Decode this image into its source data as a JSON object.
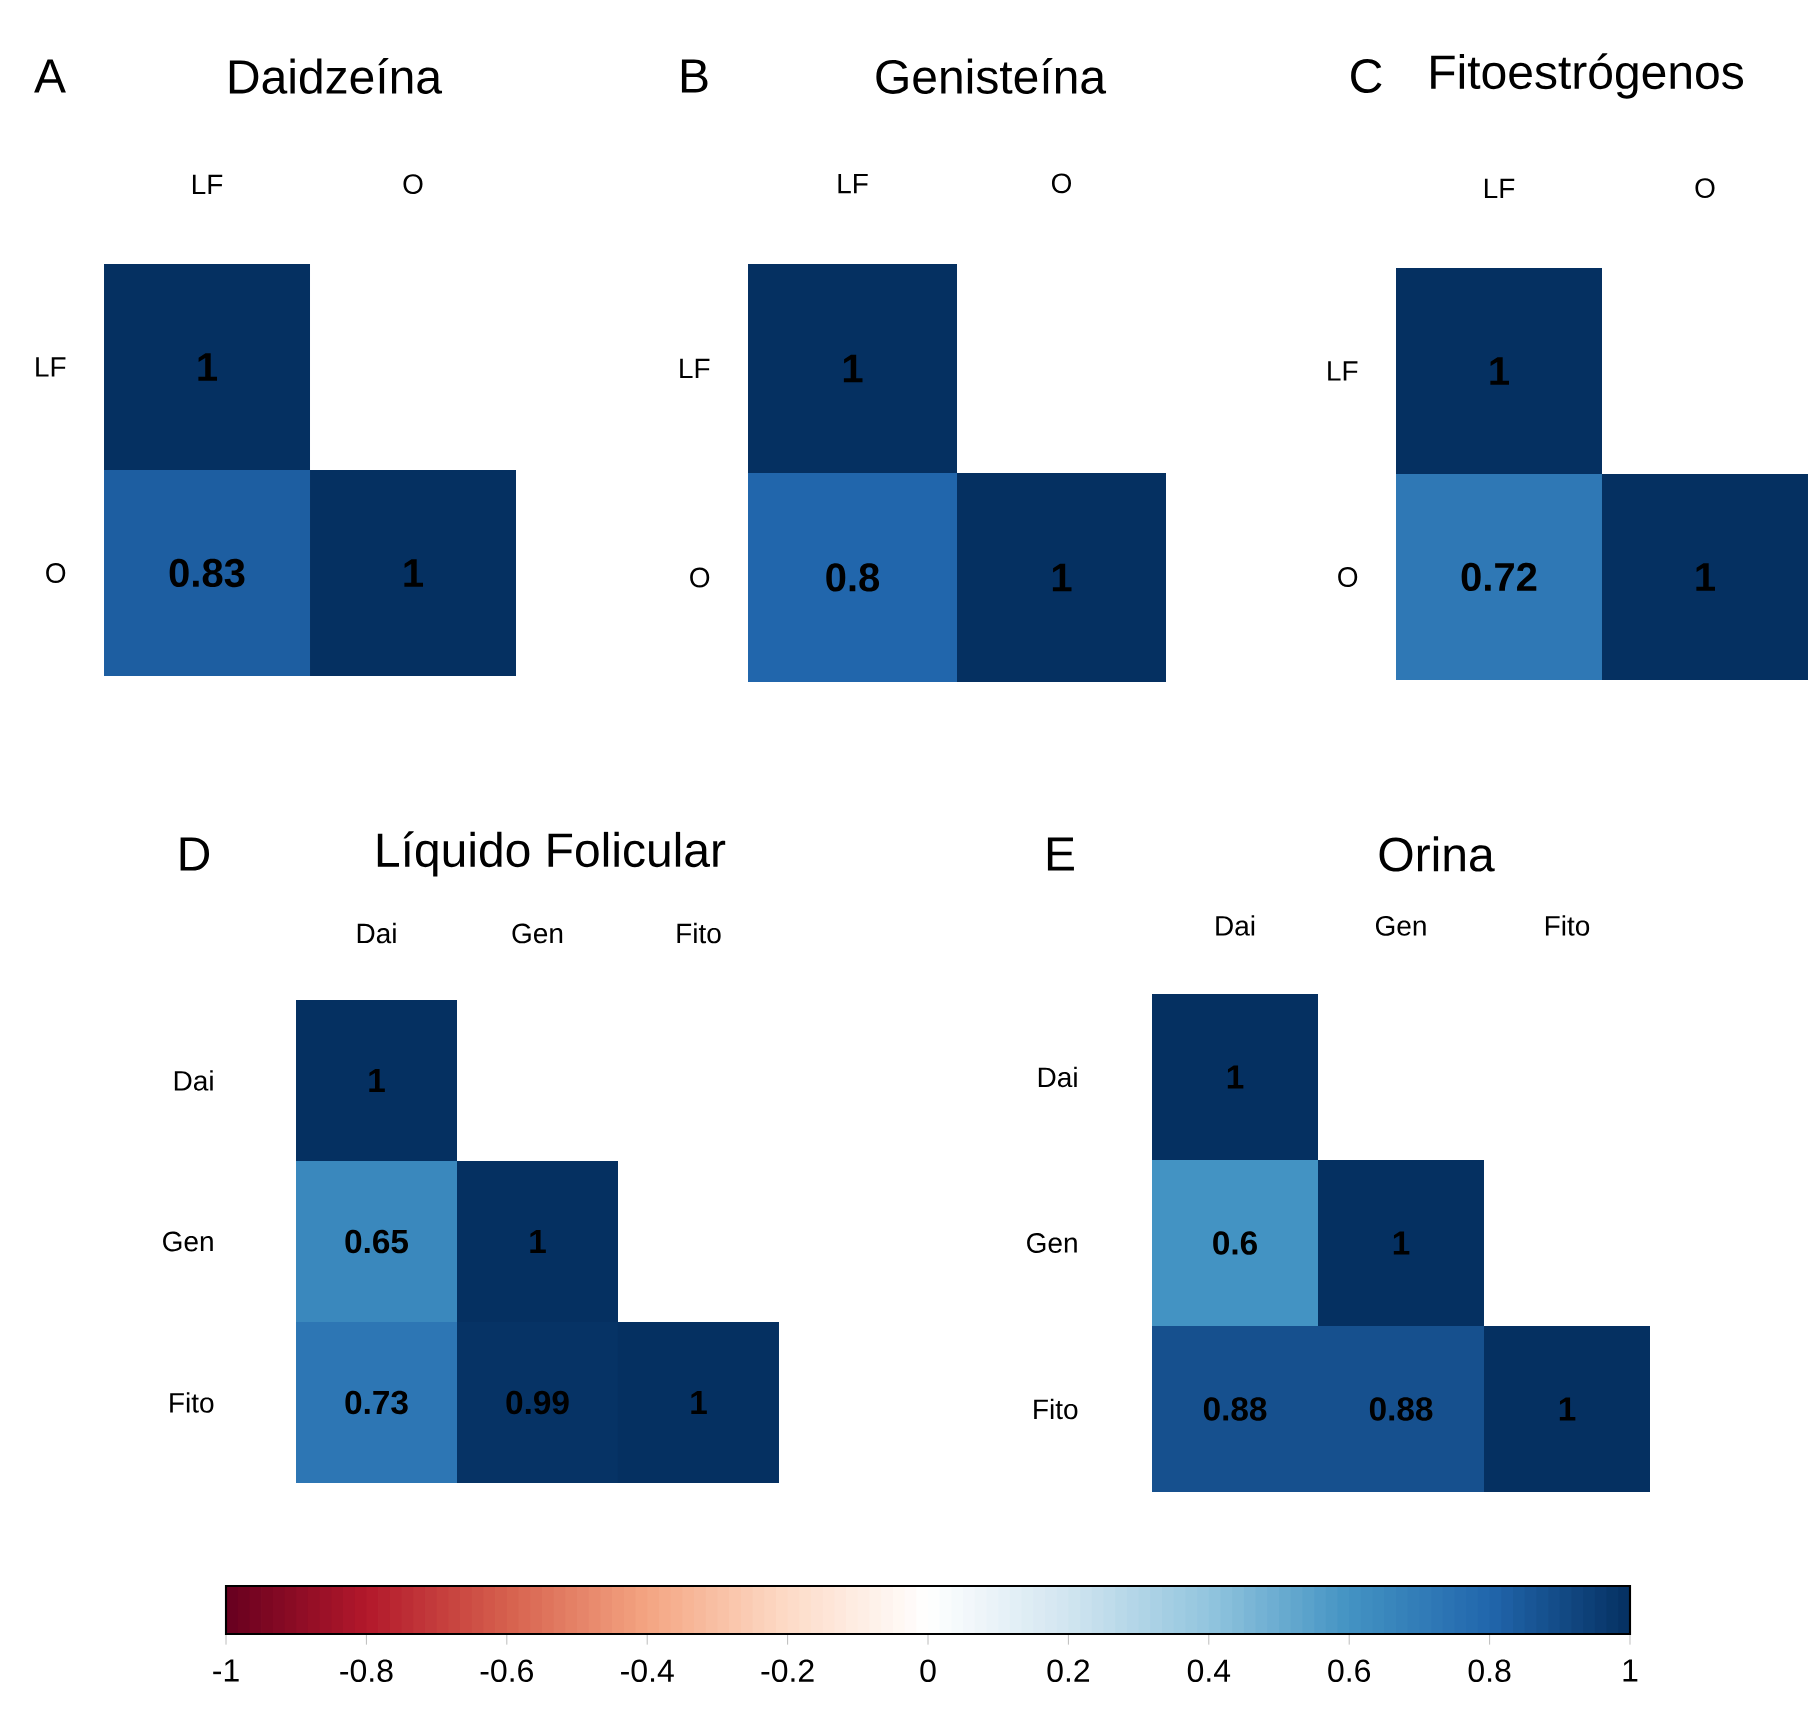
{
  "chart_data": [
    {
      "type": "heatmap",
      "title": "Daidzeína",
      "annotations": [
        "A"
      ],
      "categories": [
        "LF",
        "O"
      ],
      "y_categories": [
        "LF",
        "O"
      ],
      "cells": [
        [
          1,
          null
        ],
        [
          0.83,
          1
        ]
      ],
      "cell_labels": [
        [
          "1",
          null
        ],
        [
          "0.83",
          "1"
        ]
      ],
      "data_labels": true
    },
    {
      "type": "heatmap",
      "title": "Genisteína",
      "annotations": [
        "B"
      ],
      "categories": [
        "LF",
        "O"
      ],
      "y_categories": [
        "LF",
        "O"
      ],
      "cells": [
        [
          1,
          null
        ],
        [
          0.8,
          1
        ]
      ],
      "cell_labels": [
        [
          "1",
          null
        ],
        [
          "0.8",
          "1"
        ]
      ],
      "data_labels": true
    },
    {
      "type": "heatmap",
      "title": "Fitoestrógenos",
      "annotations": [
        "C"
      ],
      "categories": [
        "LF",
        "O"
      ],
      "y_categories": [
        "LF",
        "O"
      ],
      "cells": [
        [
          1,
          null
        ],
        [
          0.72,
          1
        ]
      ],
      "cell_labels": [
        [
          "1",
          null
        ],
        [
          "0.72",
          "1"
        ]
      ],
      "data_labels": true
    },
    {
      "type": "heatmap",
      "title": "Líquido Folicular",
      "annotations": [
        "D"
      ],
      "categories": [
        "Dai",
        "Gen",
        "Fito"
      ],
      "y_categories": [
        "Dai",
        "Gen",
        "Fito"
      ],
      "cells": [
        [
          1,
          null,
          null
        ],
        [
          0.65,
          1,
          null
        ],
        [
          0.73,
          0.99,
          1
        ]
      ],
      "cell_labels": [
        [
          "1",
          null,
          null
        ],
        [
          "0.65",
          "1",
          null
        ],
        [
          "0.73",
          "0.99",
          "1"
        ]
      ],
      "data_labels": true
    },
    {
      "type": "heatmap",
      "title": "Orina",
      "annotations": [
        "E"
      ],
      "categories": [
        "Dai",
        "Gen",
        "Fito"
      ],
      "y_categories": [
        "Dai",
        "Gen",
        "Fito"
      ],
      "cells": [
        [
          1,
          null,
          null
        ],
        [
          0.6,
          1,
          null
        ],
        [
          0.88,
          0.88,
          1
        ]
      ],
      "cell_labels": [
        [
          "1",
          null,
          null
        ],
        [
          "0.6",
          "1",
          null
        ],
        [
          "0.88",
          "0.88",
          "1"
        ]
      ],
      "clim": [
        -1,
        1
      ],
      "cticks": [
        {
          "value": -1,
          "label": "-1"
        },
        {
          "value": -0.8,
          "label": "-0.8"
        },
        {
          "value": -0.6,
          "label": "-0.6"
        },
        {
          "value": -0.4,
          "label": "-0.4"
        },
        {
          "value": -0.2,
          "label": "-0.2"
        },
        {
          "value": 0,
          "label": "0"
        },
        {
          "value": 0.2,
          "label": "0.2"
        },
        {
          "value": 0.4,
          "label": "0.4"
        },
        {
          "value": 0.6,
          "label": "0.6"
        },
        {
          "value": 0.8,
          "label": "0.8"
        },
        {
          "value": 1,
          "label": "1"
        }
      ],
      "data_labels": true
    }
  ]
}
